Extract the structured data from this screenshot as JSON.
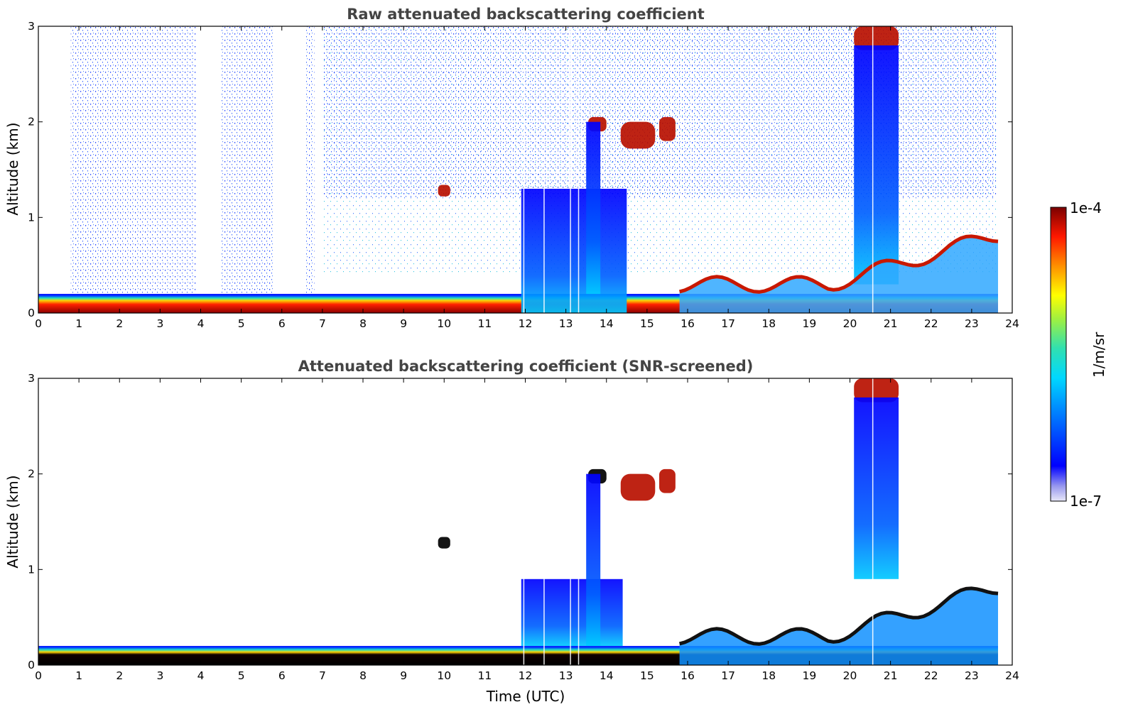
{
  "chart_data": [
    {
      "type": "heatmap",
      "title": "Raw attenuated backscattering coefficient",
      "xlabel": "",
      "ylabel": "Altitude (km)",
      "xlim": [
        0,
        24
      ],
      "ylim": [
        0,
        3
      ],
      "xticks": [
        "0",
        "1",
        "2",
        "3",
        "4",
        "5",
        "6",
        "7",
        "8",
        "9",
        "10",
        "11",
        "12",
        "13",
        "14",
        "15",
        "16",
        "17",
        "18",
        "19",
        "20",
        "21",
        "22",
        "23",
        "24"
      ],
      "yticks": [
        "0",
        "1",
        "2",
        "3"
      ],
      "features": [
        {
          "kind": "boundary_layer",
          "x": [
            0,
            23.65
          ],
          "y_top": 0.2,
          "intensity": "high"
        },
        {
          "kind": "noise_column",
          "x": [
            0.8,
            3.9
          ],
          "y": [
            0.2,
            3
          ],
          "intensity": "low"
        },
        {
          "kind": "noise_column",
          "x": [
            4.5,
            5.8
          ],
          "y": [
            0.2,
            3
          ],
          "intensity": "low"
        },
        {
          "kind": "noise_column",
          "x": [
            6.6,
            6.8
          ],
          "y": [
            0.2,
            3
          ],
          "intensity": "low"
        },
        {
          "kind": "noise_column",
          "x": [
            7.0,
            23.6
          ],
          "y": [
            1.2,
            3
          ],
          "intensity": "low"
        },
        {
          "kind": "cloud",
          "x": [
            9.85,
            10.15
          ],
          "y": [
            1.22,
            1.34
          ],
          "intensity": "high"
        },
        {
          "kind": "cloud",
          "x": [
            13.55,
            14.0
          ],
          "y": [
            1.9,
            2.05
          ],
          "intensity": "high"
        },
        {
          "kind": "cloud",
          "x": [
            14.35,
            15.2
          ],
          "y": [
            1.72,
            2.0
          ],
          "intensity": "high"
        },
        {
          "kind": "cloud",
          "x": [
            15.3,
            15.7
          ],
          "y": [
            1.8,
            2.05
          ],
          "intensity": "high"
        },
        {
          "kind": "precipitation",
          "x": [
            11.9,
            14.5
          ],
          "y": [
            0,
            1.3
          ],
          "intensity": "medium"
        },
        {
          "kind": "precipitation",
          "x": [
            13.5,
            13.85
          ],
          "y": [
            0.2,
            2.0
          ],
          "intensity": "medium"
        },
        {
          "kind": "cloud",
          "x": [
            20.1,
            21.2
          ],
          "y": [
            2.75,
            3
          ],
          "intensity": "high"
        },
        {
          "kind": "precipitation",
          "x": [
            20.1,
            21.2
          ],
          "y": [
            0.3,
            2.8
          ],
          "intensity": "medium"
        },
        {
          "kind": "boundary_layer_top",
          "x": [
            15.8,
            23.65
          ],
          "y": [
            0.3,
            0.8
          ],
          "intensity": "high"
        }
      ]
    },
    {
      "type": "heatmap",
      "title": "Attenuated backscattering coefficient (SNR-screened)",
      "xlabel": "Time (UTC)",
      "ylabel": "Altitude (km)",
      "xlim": [
        0,
        24
      ],
      "ylim": [
        0,
        3
      ],
      "xticks": [
        "0",
        "1",
        "2",
        "3",
        "4",
        "5",
        "6",
        "7",
        "8",
        "9",
        "10",
        "11",
        "12",
        "13",
        "14",
        "15",
        "16",
        "17",
        "18",
        "19",
        "20",
        "21",
        "22",
        "23",
        "24"
      ],
      "yticks": [
        "0",
        "1",
        "2",
        "3"
      ],
      "features": [
        {
          "kind": "boundary_layer",
          "x": [
            0,
            23.65
          ],
          "y_top": 0.2,
          "intensity": "saturated"
        },
        {
          "kind": "cloud",
          "x": [
            9.85,
            10.15
          ],
          "y": [
            1.22,
            1.34
          ],
          "intensity": "saturated"
        },
        {
          "kind": "cloud",
          "x": [
            13.55,
            14.0
          ],
          "y": [
            1.9,
            2.05
          ],
          "intensity": "saturated"
        },
        {
          "kind": "cloud",
          "x": [
            14.35,
            15.2
          ],
          "y": [
            1.72,
            2.0
          ],
          "intensity": "high"
        },
        {
          "kind": "cloud",
          "x": [
            15.3,
            15.7
          ],
          "y": [
            1.8,
            2.05
          ],
          "intensity": "high"
        },
        {
          "kind": "precipitation",
          "x": [
            11.9,
            14.4
          ],
          "y": [
            0.2,
            0.9
          ],
          "intensity": "medium"
        },
        {
          "kind": "precipitation",
          "x": [
            13.5,
            13.85
          ],
          "y": [
            0.2,
            2.0
          ],
          "intensity": "medium"
        },
        {
          "kind": "cloud",
          "x": [
            20.1,
            21.2
          ],
          "y": [
            2.75,
            3
          ],
          "intensity": "high"
        },
        {
          "kind": "precipitation",
          "x": [
            20.1,
            21.2
          ],
          "y": [
            0.9,
            2.8
          ],
          "intensity": "medium"
        },
        {
          "kind": "boundary_layer_top",
          "x": [
            15.8,
            23.65
          ],
          "y": [
            0.3,
            0.8
          ],
          "intensity": "high"
        }
      ]
    }
  ],
  "colorbar": {
    "label": "1/m/sr",
    "max_label": "1e-4",
    "min_label": "1e-7",
    "scale": "log",
    "range": [
      1e-07,
      0.0001
    ],
    "colormap": [
      "#e6e6fa",
      "#0000ff",
      "#00c8ff",
      "#40e0b0",
      "#ffff00",
      "#ff8000",
      "#ff0000",
      "#8b0000"
    ]
  },
  "colors": {
    "saturated": "#000000",
    "axis": "#000000",
    "title": "#444444"
  }
}
